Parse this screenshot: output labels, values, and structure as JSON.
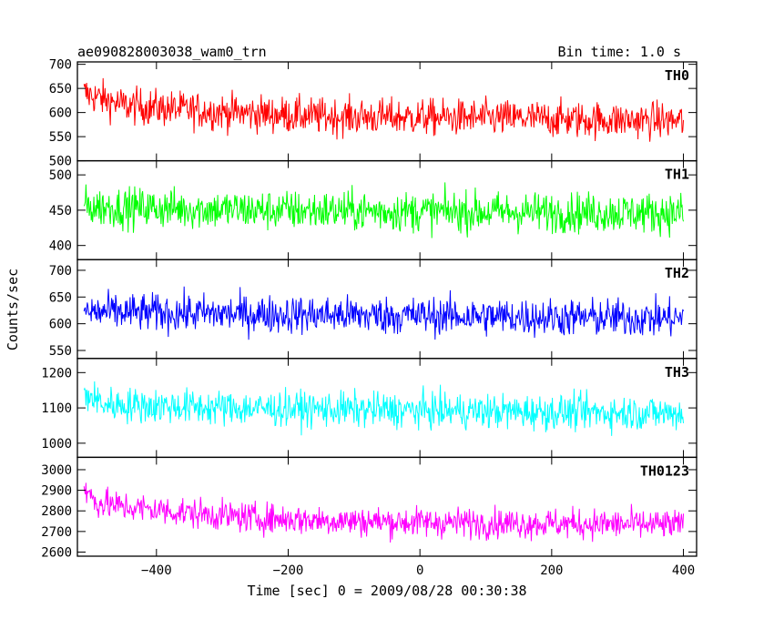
{
  "header": {
    "title": "ae090828003038_wam0_trn",
    "bin_time": "Bin time: 1.0 s"
  },
  "chart_data": {
    "type": "line",
    "xlabel": "Time [sec] 0 = 2009/08/28 00:30:38",
    "ylabel": "Counts/sec",
    "xlim": [
      -520,
      420
    ],
    "x_ticks": [
      -400,
      -200,
      0,
      200,
      400
    ],
    "x_tick_labels": [
      "−400",
      "−200",
      "0",
      "200",
      "400"
    ],
    "x_range": [
      -510,
      400
    ],
    "panels": [
      {
        "name": "TH0",
        "color": "#ff0000",
        "ylim": [
          500,
          705
        ],
        "y_ticks": [
          500,
          550,
          600,
          650,
          700
        ],
        "points": [
          [
            -510,
            640
          ],
          [
            -450,
            615
          ],
          [
            -350,
            605
          ],
          [
            -250,
            598
          ],
          [
            -150,
            592
          ],
          [
            0,
            590
          ],
          [
            150,
            588
          ],
          [
            250,
            585
          ],
          [
            400,
            583
          ]
        ],
        "noise_amplitude": 32
      },
      {
        "name": "TH1",
        "color": "#00ff00",
        "ylim": [
          380,
          520
        ],
        "y_ticks": [
          400,
          450,
          500
        ],
        "points": [
          [
            -510,
            455
          ],
          [
            -250,
            450
          ],
          [
            0,
            448
          ],
          [
            200,
            447
          ],
          [
            400,
            446
          ]
        ],
        "noise_amplitude": 24
      },
      {
        "name": "TH2",
        "color": "#0000ff",
        "ylim": [
          535,
          720
        ],
        "y_ticks": [
          550,
          600,
          650,
          700
        ],
        "points": [
          [
            -510,
            622
          ],
          [
            -250,
            618
          ],
          [
            0,
            615
          ],
          [
            200,
            612
          ],
          [
            400,
            610
          ]
        ],
        "noise_amplitude": 30
      },
      {
        "name": "TH3",
        "color": "#00ffff",
        "ylim": [
          960,
          1240
        ],
        "y_ticks": [
          1000,
          1100,
          1200
        ],
        "points": [
          [
            -510,
            1140
          ],
          [
            -480,
            1110
          ],
          [
            -300,
            1100
          ],
          [
            -100,
            1095
          ],
          [
            100,
            1090
          ],
          [
            400,
            1085
          ]
        ],
        "noise_amplitude": 42
      },
      {
        "name": "TH0123",
        "color": "#ff00ff",
        "ylim": [
          2580,
          3060
        ],
        "y_ticks": [
          2600,
          2700,
          2800,
          2900,
          3000
        ],
        "points": [
          [
            -510,
            2905
          ],
          [
            -490,
            2840
          ],
          [
            -450,
            2820
          ],
          [
            -350,
            2790
          ],
          [
            -250,
            2765
          ],
          [
            -100,
            2750
          ],
          [
            0,
            2745
          ],
          [
            150,
            2740
          ],
          [
            300,
            2735
          ],
          [
            400,
            2730
          ]
        ],
        "noise_amplitude": 62
      }
    ]
  }
}
